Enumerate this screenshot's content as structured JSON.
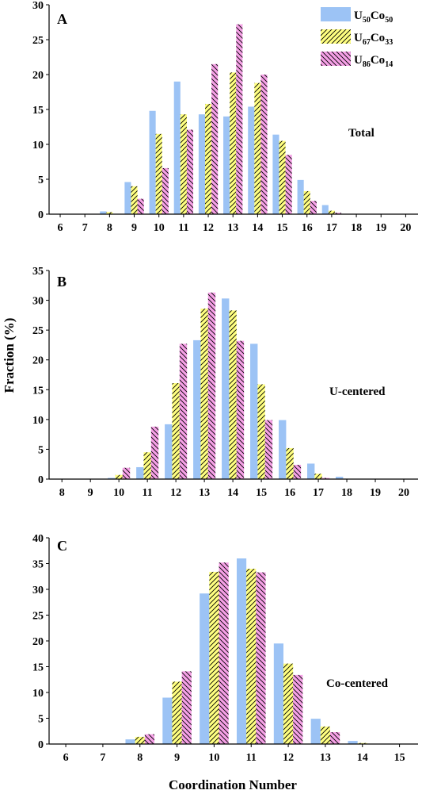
{
  "figure": {
    "ylabel": "Fraction (%)",
    "xlabel": "Coordination Number",
    "legend": [
      {
        "base": "U",
        "sub1": "50",
        "mid": "Co",
        "sub2": "50"
      },
      {
        "base": "U",
        "sub1": "67",
        "mid": "Co",
        "sub2": "33"
      },
      {
        "base": "U",
        "sub1": "86",
        "mid": "Co",
        "sub2": "14"
      }
    ]
  },
  "colors": {
    "U50Co50": "#9cc3f5",
    "U67Co33": "#ffff80",
    "U86Co14": "#f5a0e6",
    "hatch": "#000000"
  },
  "chart_data": [
    {
      "type": "bar",
      "panel_letter": "A",
      "annotation": "Total",
      "x": [
        6,
        7,
        8,
        9,
        10,
        11,
        12,
        13,
        14,
        15,
        16,
        17,
        18,
        19,
        20
      ],
      "xlim": [
        5.55,
        20.5
      ],
      "ylim": [
        0,
        30
      ],
      "yticks": [
        0,
        5,
        10,
        15,
        20,
        25,
        30
      ],
      "grid": false,
      "legend_position": "top-right",
      "series": [
        {
          "name": "U50Co50",
          "values": [
            0,
            0,
            0.4,
            4.6,
            14.8,
            19.0,
            14.3,
            14.0,
            15.4,
            11.4,
            4.9,
            1.3,
            0,
            0,
            0
          ]
        },
        {
          "name": "U67Co33",
          "values": [
            0,
            0,
            0.3,
            4.0,
            11.5,
            14.3,
            15.8,
            20.3,
            18.8,
            10.5,
            3.3,
            0.5,
            0,
            0,
            0
          ]
        },
        {
          "name": "U86Co14",
          "values": [
            0,
            0,
            0,
            2.2,
            6.6,
            12.1,
            21.5,
            27.2,
            20.0,
            8.5,
            1.9,
            0.2,
            0,
            0,
            0
          ]
        }
      ]
    },
    {
      "type": "bar",
      "panel_letter": "B",
      "annotation": "U-centered",
      "x": [
        8,
        9,
        10,
        11,
        12,
        13,
        14,
        15,
        16,
        17,
        18,
        19,
        20
      ],
      "xlim": [
        7.55,
        20.5
      ],
      "ylim": [
        0,
        35
      ],
      "yticks": [
        0,
        5,
        10,
        15,
        20,
        25,
        30,
        35
      ],
      "grid": false,
      "series": [
        {
          "name": "U50Co50",
          "values": [
            0,
            0,
            0.2,
            2.0,
            9.2,
            23.3,
            30.3,
            22.7,
            9.9,
            2.6,
            0.4,
            0,
            0
          ]
        },
        {
          "name": "U67Co33",
          "values": [
            0,
            0,
            0.7,
            4.5,
            16.1,
            28.6,
            28.3,
            15.9,
            5.2,
            0.9,
            0,
            0,
            0
          ]
        },
        {
          "name": "U86Co14",
          "values": [
            0,
            0,
            1.9,
            8.8,
            22.7,
            31.3,
            23.2,
            9.9,
            2.4,
            0.2,
            0,
            0,
            0
          ]
        }
      ]
    },
    {
      "type": "bar",
      "panel_letter": "C",
      "annotation": "Co-centered",
      "x": [
        6,
        7,
        8,
        9,
        10,
        11,
        12,
        13,
        14,
        15
      ],
      "xlim": [
        5.55,
        15.5
      ],
      "ylim": [
        0,
        40
      ],
      "yticks": [
        0,
        5,
        10,
        15,
        20,
        25,
        30,
        35,
        40
      ],
      "grid": false,
      "series": [
        {
          "name": "U50Co50",
          "values": [
            0,
            0,
            0.9,
            9.0,
            29.2,
            36.0,
            19.5,
            4.9,
            0.6,
            0
          ]
        },
        {
          "name": "U67Co33",
          "values": [
            0,
            0,
            1.4,
            12.1,
            33.4,
            34.0,
            15.6,
            3.4,
            0.2,
            0
          ]
        },
        {
          "name": "U86Co14",
          "values": [
            0,
            0,
            1.9,
            14.1,
            35.2,
            33.3,
            13.4,
            2.3,
            0,
            0
          ]
        }
      ]
    }
  ]
}
